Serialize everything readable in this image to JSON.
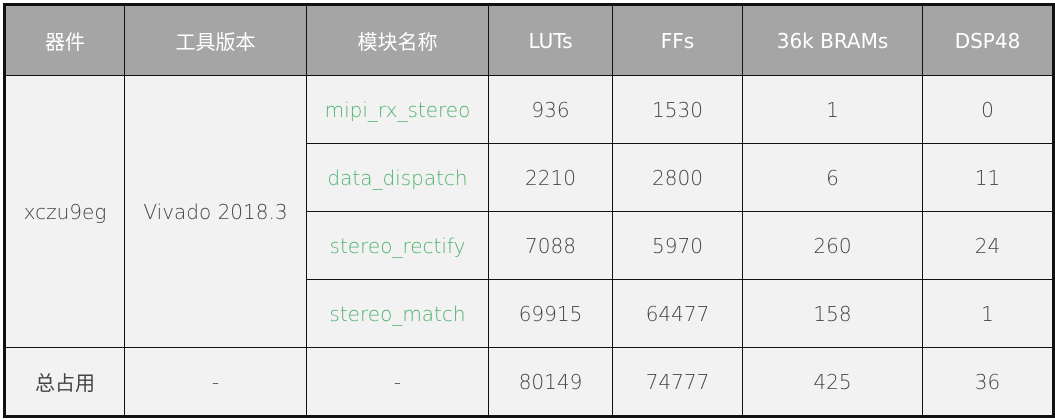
{
  "headers": [
    "器件",
    "工具版本",
    "模块名称",
    "LUTs",
    "FFs",
    "36k BRAMs",
    "DSP48"
  ],
  "device": "xczu9eg",
  "tool_version": "Vivado 2018.3",
  "rows": [
    {
      "module": "mipi_rx_stereo",
      "luts": "936",
      "ffs": "1530",
      "brams": "1",
      "dsp": "0"
    },
    {
      "module": "data_dispatch",
      "luts": "2210",
      "ffs": "2800",
      "brams": "6",
      "dsp": "11"
    },
    {
      "module": "stereo_rectify",
      "luts": "7088",
      "ffs": "5970",
      "brams": "260",
      "dsp": "24"
    },
    {
      "module": "stereo_match",
      "luts": "69915",
      "ffs": "64477",
      "brams": "158",
      "dsp": "1"
    }
  ],
  "total": {
    "label": "总占用",
    "tool": "-",
    "module": "-",
    "luts": "80149",
    "ffs": "74777",
    "brams": "425",
    "dsp": "36"
  },
  "colors": {
    "header_bg": "#a5a5a5",
    "cell_bg": "#f2f2f2",
    "module_text": "#4fb36f"
  }
}
